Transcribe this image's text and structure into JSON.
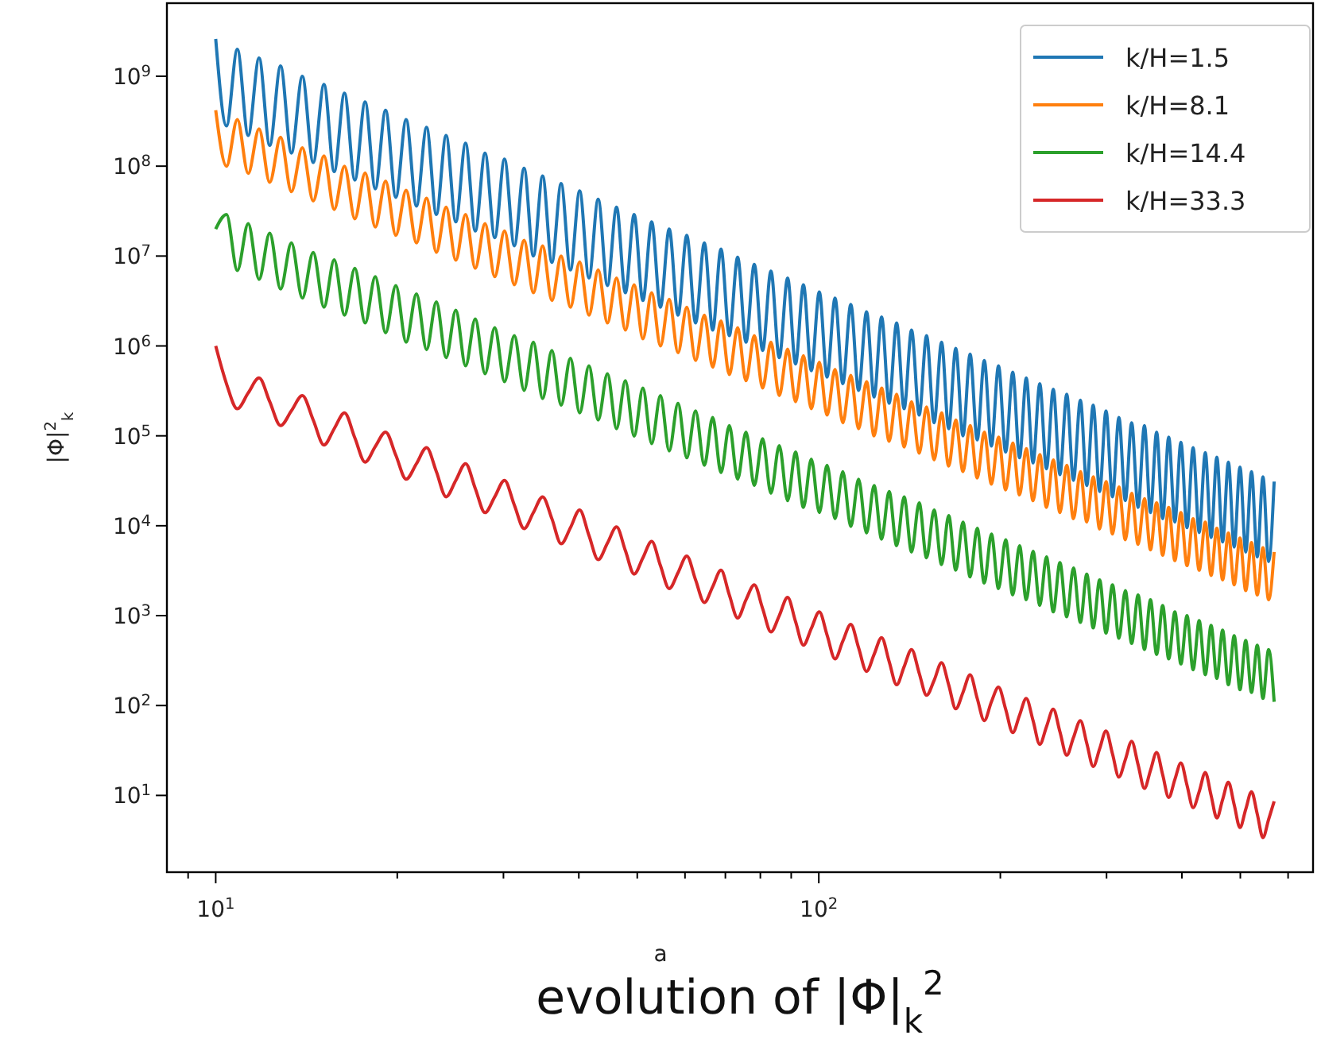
{
  "chart_data": {
    "type": "line",
    "xlabel": "a",
    "ylabel": "|Φ|$^{2}$$_{k}$",
    "log": "xy",
    "legend": "top right",
    "annotations": [
      "evolution of |Φ|$_{k}$$^{2}$"
    ],
    "xlim": [
      8.3,
      660
    ],
    "ylim": [
      1.4,
      6500000000.0
    ],
    "xticks": [
      {
        "value": 9,
        "label": null
      },
      {
        "value": 10,
        "label": "10$^{1}$"
      },
      {
        "value": 20,
        "label": null
      },
      {
        "value": 30,
        "label": null
      },
      {
        "value": 40,
        "label": null
      },
      {
        "value": 50,
        "label": null
      },
      {
        "value": 60,
        "label": null
      },
      {
        "value": 70,
        "label": null
      },
      {
        "value": 80,
        "label": null
      },
      {
        "value": 90,
        "label": null
      },
      {
        "value": 100,
        "label": "10$^{2}$"
      },
      {
        "value": 200,
        "label": null
      },
      {
        "value": 300,
        "label": null
      },
      {
        "value": 400,
        "label": null
      },
      {
        "value": 500,
        "label": null
      },
      {
        "value": 600,
        "label": null
      }
    ],
    "yticks": [
      {
        "value": 10,
        "label": "10$^{1}$"
      },
      {
        "value": 100,
        "label": "10$^{2}$"
      },
      {
        "value": 1000,
        "label": "10$^{3}$"
      },
      {
        "value": 10000,
        "label": "10$^{4}$"
      },
      {
        "value": 100000,
        "label": "10$^{5}$"
      },
      {
        "value": 1000000,
        "label": "10$^{6}$"
      },
      {
        "value": 10000000,
        "label": "10$^{7}$"
      },
      {
        "value": 100000000,
        "label": "10$^{8}$"
      },
      {
        "value": 1000000000,
        "label": "10$^{9}$"
      }
    ],
    "x": [
      10,
      10.42,
      10.86,
      11.32,
      11.8,
      12.29,
      12.81,
      13.35,
      13.92,
      14.51,
      15.12,
      15.72,
      16.35,
      17.01,
      17.69,
      18.39,
      19.13,
      19.89,
      20.69,
      21.52,
      22.37,
      23.22,
      24.1,
      25.01,
      25.96,
      26.94,
      27.96,
      29.02,
      30.12,
      31.27,
      32.46,
      33.63,
      34.84,
      36.09,
      37.39,
      38.74,
      40.13,
      41.58,
      43.07,
      44.62,
      46.2,
      47.78,
      49.41,
      51.09,
      52.83,
      54.63,
      56.49,
      58.42,
      60.41,
      62.47,
      64.6,
      66.69,
      68.84,
      71.06,
      73.36,
      75.73,
      78.17,
      80.7,
      83.3,
      85.99,
      88.78,
      91.5,
      94.3,
      97.18,
      100.2,
      103.2,
      106.4,
      109.6,
      113,
      116.4,
      120,
      123.5,
      127.1,
      130.8,
      134.6,
      138.5,
      142.5,
      146.7,
      150.9,
      155.3,
      159.8,
      164.2,
      168.7,
      173.4,
      178.2,
      183.1,
      188.1,
      193.3,
      198.6,
      204.1,
      209.7,
      215.2,
      220.8,
      226.6,
      232.5,
      238.5,
      244.8,
      251.1,
      257.7,
      264.4,
      271.5,
      278.2,
      285.1,
      292.2,
      299.4,
      306.9,
      314.5,
      322.3,
      330.2,
      338.4,
      346.7,
      354.8,
      363.2,
      371.7,
      380.4,
      389.4,
      398.5,
      407.9,
      417.5,
      427.3,
      437.4,
      447.2,
      457.1,
      467.3,
      477.7,
      488.4,
      499.3,
      510.4,
      521.8,
      533.4,
      545.1,
      557,
      568.9
    ],
    "series": [
      {
        "name": "k/H=1.5",
        "color": "#1f77b4",
        "values": [
          2600000000.0,
          280000000.0,
          2000000000.0,
          220000000.0,
          1600000000.0,
          170000000.0,
          1300000000.0,
          140000000.0,
          1000000000.0,
          110000000.0,
          810000000.0,
          87000000.0,
          650000000.0,
          70000000.0,
          520000000.0,
          56000000.0,
          420000000.0,
          45000000.0,
          330000000.0,
          36000000.0,
          270000000.0,
          29000000.0,
          220000000.0,
          24000000.0,
          180000000.0,
          19000000.0,
          140000000.0,
          16000000.0,
          120000000.0,
          13000000.0,
          95000000.0,
          10000000.0,
          78000000.0,
          8500000.0,
          64000000.0,
          7000000.0,
          53000000.0,
          5700000.0,
          43000000.0,
          4700000.0,
          35000000.0,
          3900000.0,
          29000000.0,
          3200000.0,
          24000000.0,
          2700000.0,
          20000000.0,
          2200000.0,
          17000000.0,
          1800000.0,
          14000000.0,
          1500000.0,
          12000000.0,
          1300000.0,
          9700000.0,
          1100000.0,
          8100000.0,
          890000.0,
          6800000.0,
          740000.0,
          5700000.0,
          630000.0,
          4800000.0,
          530000.0,
          4000000.0,
          450000.0,
          3400000.0,
          380000.0,
          2900000.0,
          320000.0,
          2400000.0,
          270000.0,
          2100000.0,
          230000.0,
          1800000.0,
          200000.0,
          1500000.0,
          170000.0,
          1300000.0,
          140000.0,
          1100000.0,
          120000.0,
          940000.0,
          100000.0,
          810000.0,
          90000.0,
          690000.0,
          77000.0,
          600000.0,
          66000.0,
          510000.0,
          57000.0,
          440000.0,
          50000.0,
          380000.0,
          43000.0,
          330000.0,
          37000.0,
          290000.0,
          32000.0,
          250000.0,
          28000.0,
          220000.0,
          24000.0,
          190000.0,
          21000.0,
          160000.0,
          19000.0,
          140000.0,
          16000.0,
          130000.0,
          14000.0,
          110000.0,
          12000.0,
          97000.0,
          11000.0,
          85000.0,
          9500.0,
          74000.0,
          8400.0,
          65000.0,
          7400.0,
          58000.0,
          6600.0,
          51000.0,
          5800.0,
          45000.0,
          5100.0,
          40000.0,
          4500.0,
          35000.0,
          4000.0,
          31000.0
        ]
      },
      {
        "name": "k/H=8.1",
        "color": "#ff7f0e",
        "values": [
          420000000.0,
          100000000.0,
          330000000.0,
          83000000.0,
          260000000.0,
          66000000.0,
          210000000.0,
          52000000.0,
          160000000.0,
          41000000.0,
          130000000.0,
          33000000.0,
          100000000.0,
          26000000.0,
          84000000.0,
          21000000.0,
          68000000.0,
          17000000.0,
          54000000.0,
          14000000.0,
          44000000.0,
          11000000.0,
          35000000.0,
          9000000.0,
          29000000.0,
          7300000.0,
          23000000.0,
          5900000.0,
          19000000.0,
          4800000.0,
          15000000.0,
          3900000.0,
          13000000.0,
          3200000.0,
          10000000.0,
          2700000.0,
          8600000.0,
          2200000.0,
          7000000.0,
          1800000.0,
          5700000.0,
          1500000.0,
          4800000.0,
          1200000.0,
          3900000.0,
          1000000.0,
          3300000.0,
          840000.0,
          2700000.0,
          690000.0,
          2200000.0,
          580000.0,
          1900000.0,
          480000.0,
          1600000.0,
          410000.0,
          1300000.0,
          340000.0,
          1100000.0,
          280000.0,
          920000.0,
          240000.0,
          780000.0,
          200000.0,
          660000.0,
          170000.0,
          550000.0,
          140000.0,
          470000.0,
          120000.0,
          400000.0,
          100000.0,
          340000.0,
          87000.0,
          290000.0,
          75000.0,
          240000.0,
          64000.0,
          210000.0,
          54000.0,
          180000.0,
          46000.0,
          150000.0,
          40000.0,
          130000.0,
          34000.0,
          110000.0,
          29000.0,
          97000.0,
          25000.0,
          83000.0,
          22000.0,
          72000.0,
          19000.0,
          62000.0,
          16000.0,
          54000.0,
          14000.0,
          47000.0,
          12000.0,
          40000.0,
          11000.0,
          35000.0,
          9200.0,
          31000.0,
          8100.0,
          27000.0,
          7000.0,
          23000.0,
          6200.0,
          20000.0,
          5400.0,
          18000.0,
          4700.0,
          16000.0,
          4100.0,
          14000.0,
          3600.0,
          12000.0,
          3200.0,
          11000.0,
          2800.0,
          9400.0,
          2500.0,
          8300.0,
          2200.0,
          7300.0,
          1900.0,
          6500.0,
          1700.0,
          5700.0,
          1500.0,
          5100.0
        ]
      },
      {
        "name": "k/H=14.4",
        "color": "#2ca02c",
        "values": [
          20000000.0,
          29000000.0,
          6900000.0,
          23000000.0,
          5500000.0,
          18000000.0,
          4300000.0,
          14000000.0,
          3400000.0,
          11000000.0,
          2700000.0,
          9100000.0,
          2200000.0,
          7300000.0,
          1800000.0,
          5900000.0,
          1400000.0,
          4700000.0,
          1100000.0,
          3800000.0,
          910000.0,
          3100000.0,
          740000.0,
          2500000.0,
          600000.0,
          2000000.0,
          490000.0,
          1600000.0,
          400000.0,
          1300000.0,
          320000.0,
          1100000.0,
          260000.0,
          890000.0,
          220000.0,
          730000.0,
          180000.0,
          600000.0,
          150000.0,
          490000.0,
          120000.0,
          410000.0,
          99000.0,
          340000.0,
          82000.0,
          280000.0,
          68000.0,
          230000.0,
          57000.0,
          190000.0,
          47000.0,
          160000.0,
          39000.0,
          130000.0,
          33000.0,
          110000.0,
          28000.0,
          93000.0,
          23000.0,
          78000.0,
          19000.0,
          66000.0,
          16000.0,
          55000.0,
          14000.0,
          47000.0,
          12000.0,
          40000.0,
          9800.0,
          33000.0,
          8300.0,
          28000.0,
          7100.0,
          24000.0,
          6000.0,
          21000.0,
          5100.0,
          18000.0,
          4400.0,
          15000.0,
          3700.0,
          13000.0,
          3200.0,
          11000.0,
          2700.0,
          9400.0,
          2300.0,
          8100.0,
          2000.0,
          7000.0,
          1700.0,
          6000.0,
          1500.0,
          5200.0,
          1300.0,
          4500.0,
          1100.0,
          3900.0,
          970.0,
          3400.0,
          840.0,
          2900.0,
          730.0,
          2500.0,
          640.0,
          2200.0,
          560.0,
          1900.0,
          490.0,
          1700.0,
          420.0,
          1500.0,
          370.0,
          1300.0,
          330.0,
          1100.0,
          290.0,
          1000.0,
          250.0,
          880.0,
          220.0,
          780.0,
          200.0,
          690.0,
          170.0,
          600.0,
          150.0,
          530.0,
          140.0,
          470.0,
          120.0,
          420.0,
          110.0
        ]
      },
      {
        "name": "k/H=33.3",
        "color": "#d62728",
        "values": [
          1000000.0,
          380000.0,
          200000.0,
          300000.0,
          440000.0,
          240000.0,
          130000.0,
          190000.0,
          280000.0,
          150000.0,
          79000.0,
          120000.0,
          180000.0,
          95000.0,
          51000.0,
          76000.0,
          110000.0,
          61000.0,
          33000.0,
          49000.0,
          74000.0,
          40000.0,
          21000.0,
          32000.0,
          49000.0,
          26000.0,
          14000.0,
          21000.0,
          32000.0,
          17000.0,
          9300.0,
          14000.0,
          21000.0,
          12000.0,
          6300.0,
          9500.0,
          15000.0,
          7800.0,
          4200.0,
          6400.0,
          9700.0,
          5300.0,
          2900.0,
          4400.0,
          6700.0,
          3600.0,
          2000.0,
          3000.0,
          4600.0,
          2500.0,
          1400.0,
          2100.0,
          3200.0,
          1700.0,
          940.0,
          1500.0,
          2200.0,
          1200.0,
          660.0,
          1000.0,
          1600.0,
          860.0,
          470.0,
          720.0,
          1100.0,
          610.0,
          330.0,
          520.0,
          800.0,
          440.0,
          240.0,
          370.0,
          570.0,
          310.0,
          170.0,
          270.0,
          420.0,
          230.0,
          130.0,
          190.0,
          300.0,
          170.0,
          92,
          140.0,
          220.0,
          120.0,
          68,
          110.0,
          160.0,
          91,
          50,
          78,
          120.0,
          68,
          37,
          58,
          91,
          51,
          28,
          44,
          68,
          38,
          21,
          33,
          52,
          29,
          16,
          25,
          40,
          22,
          12,
          19,
          30,
          17,
          9.5,
          15,
          23,
          13,
          7.3,
          11,
          18,
          10,
          5.6,
          9.0,
          14,
          7.9,
          4.4,
          7.0,
          11,
          6.2,
          3.4,
          5.4,
          8.6
        ]
      }
    ]
  }
}
